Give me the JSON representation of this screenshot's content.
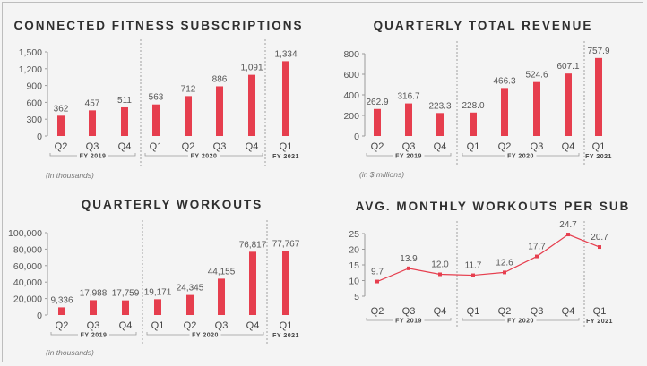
{
  "colors": {
    "bar": "#e63e4e",
    "line": "#e63e4e",
    "axis": "#9a9a9a",
    "divider": "#8a8a8a"
  },
  "chart_data": [
    {
      "type": "bar",
      "title": "CONNECTED FITNESS SUBSCRIPTIONS",
      "note": "(in thousands)",
      "categories": [
        "Q2",
        "Q3",
        "Q4",
        "Q1",
        "Q2",
        "Q3",
        "Q4",
        "Q1"
      ],
      "values": [
        362,
        457,
        511,
        563,
        712,
        886,
        1091,
        1334
      ],
      "value_labels": [
        "362",
        "457",
        "511",
        "563",
        "712",
        "886",
        "1,091",
        "1,334"
      ],
      "ylim": [
        0,
        1500
      ],
      "yticks": [
        "0",
        "300",
        "600",
        "900",
        "1,200",
        "1,500"
      ],
      "fiscal_groups": [
        "FY 2019",
        "FY 2020",
        "FY 2021"
      ]
    },
    {
      "type": "bar",
      "title": "QUARTERLY TOTAL REVENUE",
      "note": "(in $ millions)",
      "categories": [
        "Q2",
        "Q3",
        "Q4",
        "Q1",
        "Q2",
        "Q3",
        "Q4",
        "Q1"
      ],
      "values": [
        262.9,
        316.7,
        223.3,
        228.0,
        466.3,
        524.6,
        607.1,
        757.9
      ],
      "value_labels": [
        "262.9",
        "316.7",
        "223.3",
        "228.0",
        "466.3",
        "524.6",
        "607.1",
        "757.9"
      ],
      "ylim": [
        0,
        800
      ],
      "yticks": [
        "0",
        "200",
        "400",
        "600",
        "800"
      ],
      "fiscal_groups": [
        "FY 2019",
        "FY 2020",
        "FY 2021"
      ]
    },
    {
      "type": "bar",
      "title": "QUARTERLY WORKOUTS",
      "note": "(in thousands)",
      "categories": [
        "Q2",
        "Q3",
        "Q4",
        "Q1",
        "Q2",
        "Q3",
        "Q4",
        "Q1"
      ],
      "values": [
        9336,
        17988,
        17759,
        19171,
        24345,
        44155,
        76817,
        77767
      ],
      "value_labels": [
        "9,336",
        "17,988",
        "17,759",
        "19,171",
        "24,345",
        "44,155",
        "76,817",
        "77,767"
      ],
      "ylim": [
        0,
        100000
      ],
      "yticks": [
        "0",
        "20,000",
        "40,000",
        "60,000",
        "80,000",
        "100,000"
      ],
      "fiscal_groups": [
        "FY 2019",
        "FY 2020",
        "FY 2021"
      ]
    },
    {
      "type": "line",
      "title": "AVG. MONTHLY WORKOUTS PER SUB",
      "note": "",
      "categories": [
        "Q2",
        "Q3",
        "Q4",
        "Q1",
        "Q2",
        "Q3",
        "Q4",
        "Q1"
      ],
      "values": [
        9.7,
        13.9,
        12.0,
        11.7,
        12.6,
        17.7,
        24.7,
        20.7
      ],
      "value_labels": [
        "9.7",
        "13.9",
        "12.0",
        "11.7",
        "12.6",
        "17.7",
        "24.7",
        "20.7"
      ],
      "ylim": [
        5,
        25
      ],
      "yticks": [
        "5",
        "10",
        "15",
        "20",
        "25"
      ],
      "fiscal_groups": [
        "FY 2019",
        "FY 2020",
        "FY 2021"
      ]
    }
  ]
}
